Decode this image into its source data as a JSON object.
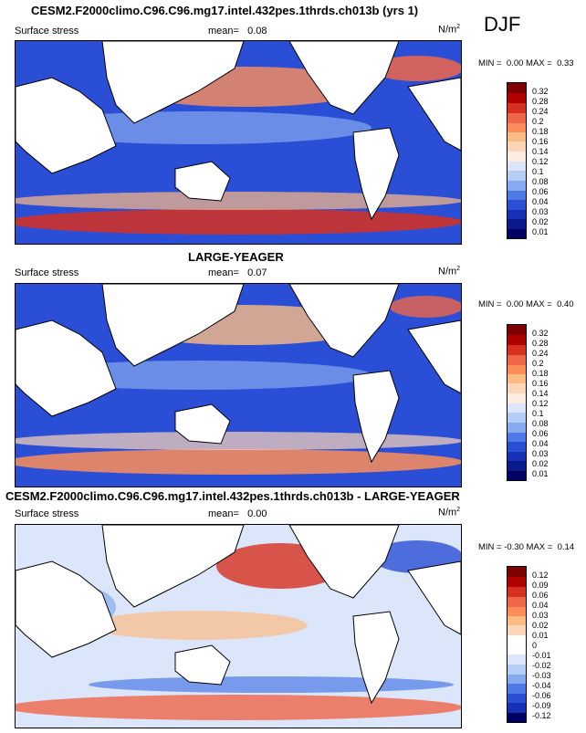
{
  "season": "DJF",
  "panels": [
    {
      "title": "CESM2.F2000climo.C96.C96.mg17.intel.432pes.1thrds.ch013b (yrs 1)",
      "variable": "Surface stress",
      "mean_label": "mean=",
      "mean": "0.08",
      "units_base": "N/m",
      "units_exp": "2",
      "min_label": "MIN =",
      "min": "0.00",
      "max_label": "MAX =",
      "max": "0.33",
      "colorbar_levels": [
        "0.32",
        "0.28",
        "0.24",
        "0.2",
        "0.18",
        "0.16",
        "0.14",
        "0.12",
        "0.1",
        "0.08",
        "0.06",
        "0.04",
        "0.03",
        "0.02",
        "0.01"
      ]
    },
    {
      "title": "LARGE-YEAGER",
      "variable": "Surface stress",
      "mean_label": "mean=",
      "mean": "0.07",
      "units_base": "N/m",
      "units_exp": "2",
      "min_label": "MIN =",
      "min": "0.00",
      "max_label": "MAX =",
      "max": "0.40",
      "colorbar_levels": [
        "0.32",
        "0.28",
        "0.24",
        "0.2",
        "0.18",
        "0.16",
        "0.14",
        "0.12",
        "0.1",
        "0.08",
        "0.06",
        "0.04",
        "0.03",
        "0.02",
        "0.01"
      ]
    },
    {
      "title": "CESM2.F2000climo.C96.C96.mg17.intel.432pes.1thrds.ch013b - LARGE-YEAGER",
      "variable": "Surface stress",
      "mean_label": "mean=",
      "mean": "0.00",
      "units_base": "N/m",
      "units_exp": "2",
      "min_label": "MIN =",
      "min": "-0.30",
      "max_label": "MAX =",
      "max": "0.14",
      "colorbar_levels": [
        "0.12",
        "0.09",
        "0.06",
        "0.04",
        "0.03",
        "0.02",
        "0.01",
        "0",
        "-0.01",
        "-0.02",
        "-0.03",
        "-0.04",
        "-0.06",
        "-0.09",
        "-0.12"
      ]
    }
  ],
  "colors": {
    "abs_scale": [
      "#7f0000",
      "#b00000",
      "#d7301f",
      "#ef6548",
      "#fc8d59",
      "#fdbb84",
      "#fdd5b8",
      "#fdece0",
      "#dbe6fb",
      "#b6cdf7",
      "#86aaf0",
      "#4f79e6",
      "#2a4fd6",
      "#1730b8",
      "#0a1a8c",
      "#000064"
    ],
    "diff_scale": [
      "#7f0000",
      "#b00000",
      "#d7301f",
      "#ef6548",
      "#fc8d59",
      "#fdbb84",
      "#fdd5b8",
      "#ffffff",
      "#ffffff",
      "#dbe6fb",
      "#b6cdf7",
      "#86aaf0",
      "#4f79e6",
      "#2a4fd6",
      "#1730b8",
      "#000064"
    ]
  }
}
